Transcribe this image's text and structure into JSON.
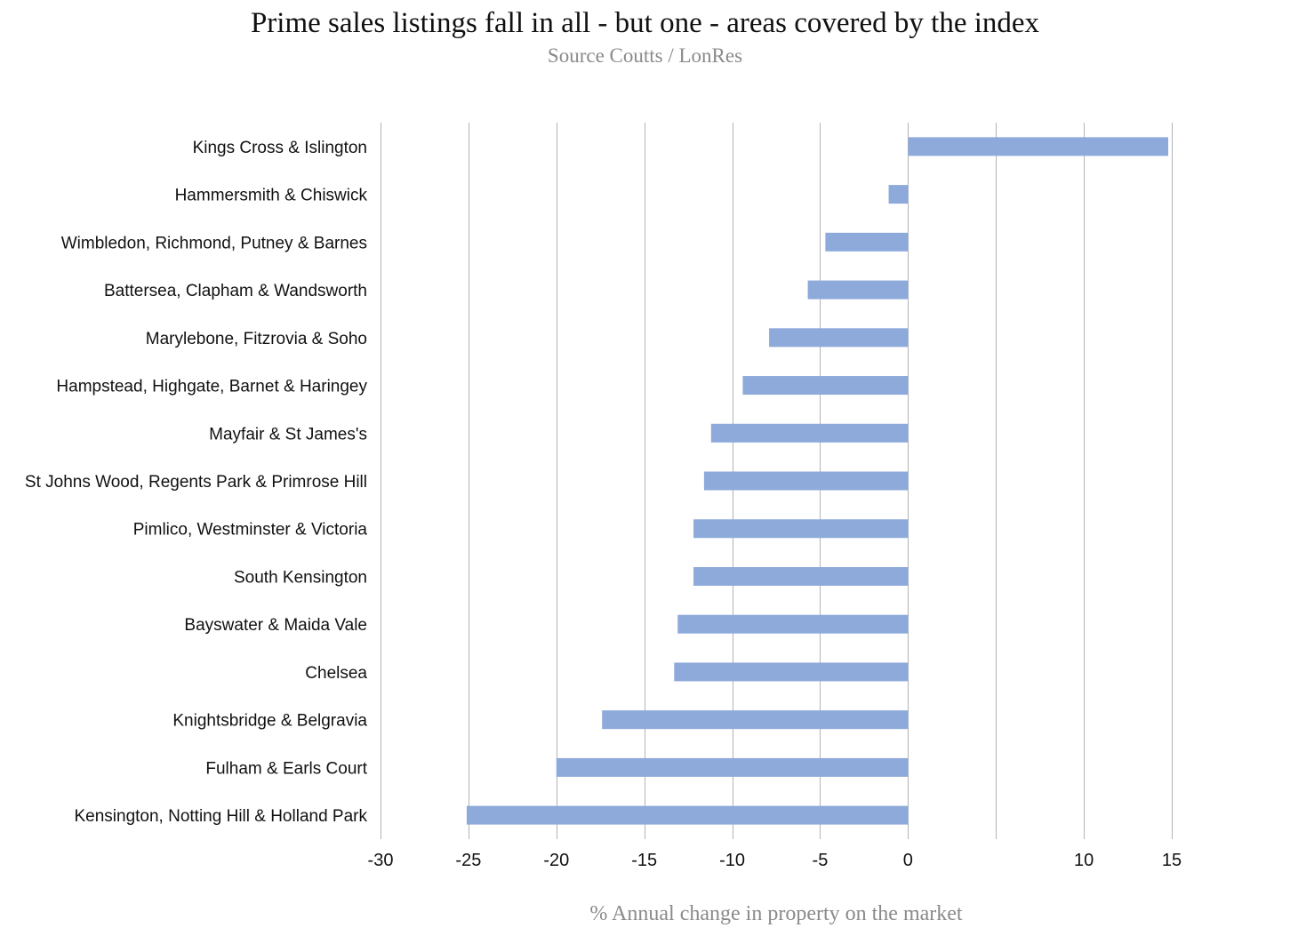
{
  "chart_data": {
    "type": "bar",
    "orientation": "horizontal",
    "title": "Prime sales listings fall in all - but one - areas covered by the index",
    "subtitle": "Source Coutts / LonRes",
    "xlabel": "% Annual change in property on the market",
    "ylabel": "",
    "xlim": [
      -30,
      15
    ],
    "xticks": [
      -30,
      -25,
      -20,
      -15,
      -10,
      -5,
      0,
      10,
      15
    ],
    "grid": "vertical",
    "legend": "none",
    "bar_color": "#8eaadb",
    "categories": [
      "Kings Cross & Islington",
      "Hammersmith & Chiswick",
      "Wimbledon, Richmond, Putney & Barnes",
      "Battersea, Clapham & Wandsworth",
      "Marylebone, Fitzrovia & Soho",
      "Hampstead, Highgate, Barnet & Haringey",
      "Mayfair & St James's",
      "St Johns Wood, Regents Park & Primrose Hill",
      "Pimlico, Westminster & Victoria",
      "South Kensington",
      "Bayswater & Maida Vale",
      "Chelsea",
      "Knightsbridge & Belgravia",
      "Fulham & Earls Court",
      "Kensington, Notting Hill & Holland Park"
    ],
    "values": [
      14.8,
      -1.1,
      -4.7,
      -5.7,
      -7.9,
      -9.4,
      -11.2,
      -11.6,
      -12.2,
      -12.2,
      -13.1,
      -13.3,
      -17.4,
      -20.0,
      -25.1
    ]
  }
}
